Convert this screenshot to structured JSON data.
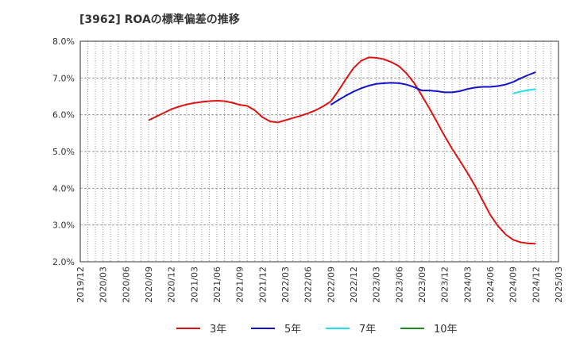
{
  "chart_data": {
    "type": "line",
    "title": "[3962]  ROAの標準偏差の推移",
    "xlabel": "",
    "ylabel": "",
    "x_ticks": [
      "2019/12",
      "2020/03",
      "2020/06",
      "2020/09",
      "2020/12",
      "2021/03",
      "2021/06",
      "2021/09",
      "2021/12",
      "2022/03",
      "2022/06",
      "2022/09",
      "2022/12",
      "2023/03",
      "2023/06",
      "2023/09",
      "2023/12",
      "2024/03",
      "2024/06",
      "2024/09",
      "2024/12",
      "2025/03"
    ],
    "y_ticks": [
      "2.0%",
      "3.0%",
      "4.0%",
      "5.0%",
      "6.0%",
      "7.0%",
      "8.0%"
    ],
    "ylim": [
      2.0,
      8.0
    ],
    "grid": true,
    "legend_position": "bottom",
    "series": [
      {
        "name": "3年",
        "color": "#dd1111",
        "points": [
          [
            "2020/09",
            5.85
          ],
          [
            "2020/10",
            5.95
          ],
          [
            "2020/11",
            6.05
          ],
          [
            "2020/12",
            6.15
          ],
          [
            "2021/01",
            6.22
          ],
          [
            "2021/02",
            6.28
          ],
          [
            "2021/03",
            6.32
          ],
          [
            "2021/04",
            6.35
          ],
          [
            "2021/05",
            6.37
          ],
          [
            "2021/06",
            6.38
          ],
          [
            "2021/07",
            6.37
          ],
          [
            "2021/08",
            6.33
          ],
          [
            "2021/09",
            6.27
          ],
          [
            "2021/10",
            6.24
          ],
          [
            "2021/11",
            6.12
          ],
          [
            "2021/12",
            5.93
          ],
          [
            "2022/01",
            5.82
          ],
          [
            "2022/02",
            5.79
          ],
          [
            "2022/03",
            5.85
          ],
          [
            "2022/04",
            5.91
          ],
          [
            "2022/05",
            5.97
          ],
          [
            "2022/06",
            6.04
          ],
          [
            "2022/07",
            6.12
          ],
          [
            "2022/08",
            6.23
          ],
          [
            "2022/09",
            6.36
          ],
          [
            "2022/10",
            6.65
          ],
          [
            "2022/11",
            6.97
          ],
          [
            "2022/12",
            7.27
          ],
          [
            "2023/01",
            7.47
          ],
          [
            "2023/02",
            7.56
          ],
          [
            "2023/03",
            7.55
          ],
          [
            "2023/04",
            7.51
          ],
          [
            "2023/05",
            7.43
          ],
          [
            "2023/06",
            7.32
          ],
          [
            "2023/07",
            7.12
          ],
          [
            "2023/08",
            6.86
          ],
          [
            "2023/09",
            6.52
          ],
          [
            "2023/10",
            6.17
          ],
          [
            "2023/11",
            5.8
          ],
          [
            "2023/12",
            5.42
          ],
          [
            "2024/01",
            5.07
          ],
          [
            "2024/02",
            4.75
          ],
          [
            "2024/03",
            4.42
          ],
          [
            "2024/04",
            4.07
          ],
          [
            "2024/05",
            3.67
          ],
          [
            "2024/06",
            3.28
          ],
          [
            "2024/07",
            2.98
          ],
          [
            "2024/08",
            2.75
          ],
          [
            "2024/09",
            2.6
          ],
          [
            "2024/10",
            2.53
          ],
          [
            "2024/11",
            2.5
          ],
          [
            "2024/12",
            2.49
          ]
        ]
      },
      {
        "name": "5年",
        "color": "#1111cc",
        "points": [
          [
            "2022/09",
            6.27
          ],
          [
            "2022/10",
            6.4
          ],
          [
            "2022/11",
            6.52
          ],
          [
            "2022/12",
            6.63
          ],
          [
            "2023/01",
            6.72
          ],
          [
            "2023/02",
            6.79
          ],
          [
            "2023/03",
            6.84
          ],
          [
            "2023/04",
            6.86
          ],
          [
            "2023/05",
            6.87
          ],
          [
            "2023/06",
            6.86
          ],
          [
            "2023/07",
            6.82
          ],
          [
            "2023/08",
            6.75
          ],
          [
            "2023/09",
            6.66
          ],
          [
            "2023/10",
            6.66
          ],
          [
            "2023/11",
            6.64
          ],
          [
            "2023/12",
            6.61
          ],
          [
            "2024/01",
            6.61
          ],
          [
            "2024/02",
            6.64
          ],
          [
            "2024/03",
            6.7
          ],
          [
            "2024/04",
            6.74
          ],
          [
            "2024/05",
            6.76
          ],
          [
            "2024/06",
            6.76
          ],
          [
            "2024/07",
            6.78
          ],
          [
            "2024/08",
            6.82
          ],
          [
            "2024/09",
            6.89
          ],
          [
            "2024/10",
            6.99
          ],
          [
            "2024/11",
            7.08
          ],
          [
            "2024/12",
            7.16
          ]
        ]
      },
      {
        "name": "7年",
        "color": "#22e0f0",
        "points": [
          [
            "2024/09",
            6.58
          ],
          [
            "2024/10",
            6.63
          ],
          [
            "2024/11",
            6.67
          ],
          [
            "2024/12",
            6.7
          ]
        ]
      },
      {
        "name": "10年",
        "color": "#228822",
        "points": []
      }
    ]
  }
}
